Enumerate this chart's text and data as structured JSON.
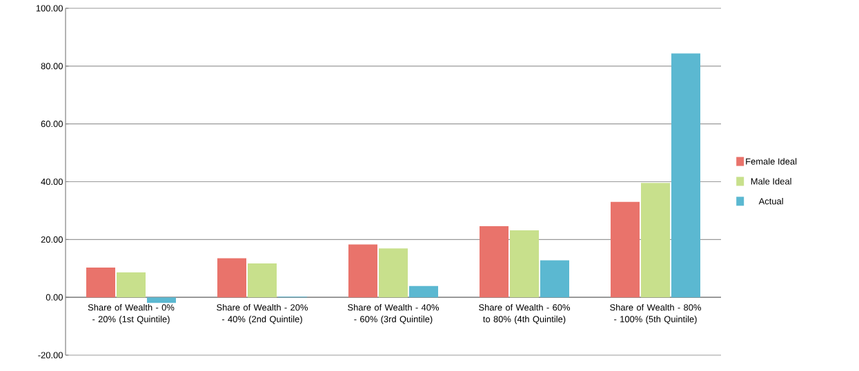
{
  "chart_data": {
    "type": "bar",
    "categories": [
      "Share of Wealth - 0% - 20% (1st Quintile)",
      "Share of Wealth - 20% - 40% (2nd Quintile)",
      "Share of Wealth - 40% - 60% (3rd Quintile)",
      "Share of Wealth - 60% to 80% (4th Quintile)",
      "Share of Wealth - 80% - 100% (5th Quintile)"
    ],
    "series": [
      {
        "name": "Female Ideal",
        "color": "#e9736b",
        "values": [
          10.3,
          13.5,
          18.3,
          24.6,
          33.0
        ]
      },
      {
        "name": "Male Ideal",
        "color": "#c8e08c",
        "values": [
          8.6,
          11.7,
          16.9,
          23.2,
          39.6
        ]
      },
      {
        "name": "Actual",
        "color": "#5bb8d1",
        "values": [
          -1.9,
          0.2,
          3.9,
          12.8,
          84.4
        ]
      }
    ],
    "ylim": [
      -20,
      100
    ],
    "yticks": [
      {
        "value": -20,
        "label": "-20.00"
      },
      {
        "value": 0,
        "label": "0.00"
      },
      {
        "value": 20,
        "label": "20.00"
      },
      {
        "value": 40,
        "label": "40.00"
      },
      {
        "value": 60,
        "label": "60.00"
      },
      {
        "value": 80,
        "label": "80.00"
      },
      {
        "value": 100,
        "label": "100.00"
      }
    ],
    "grid": "y",
    "legend": "right"
  }
}
